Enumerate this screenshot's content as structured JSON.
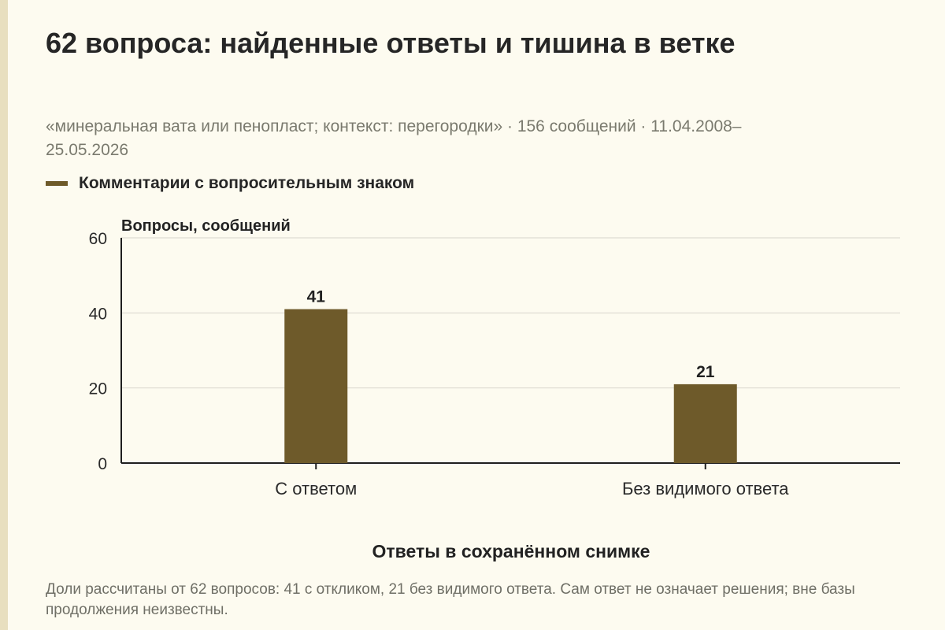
{
  "title": "62 вопроса: найденные ответы и тишина в ветке",
  "subtitle": "«минеральная вата или пенопласт; контекст: перегородки» · 156 сообщений · 11.04.2008–25.05.2026",
  "legend_label": "Комментарии с вопросительным знаком",
  "footnote": "Доли рассчитаны от 62 вопросов: 41 с откликом, 21 без видимого ответа. Сам ответ не означает решения; вне базы продолжения неизвестны.",
  "colors": {
    "bar": "#6e5a2a",
    "grid": "#d8d6cc",
    "axis": "#1f1f1f"
  },
  "chart_data": {
    "type": "bar",
    "title": "",
    "xlabel": "Ответы в сохранённом снимке",
    "ylabel": "Вопросы, сообщений",
    "categories": [
      "С ответом",
      "Без видимого ответа"
    ],
    "series": [
      {
        "name": "Комментарии с вопросительным знаком",
        "values": [
          41,
          21
        ]
      }
    ],
    "ylim": [
      0,
      60
    ],
    "yticks": [
      0,
      20,
      40,
      60
    ],
    "grid": true,
    "legend_position": "top-left",
    "data_labels": [
      "41",
      "21"
    ]
  }
}
